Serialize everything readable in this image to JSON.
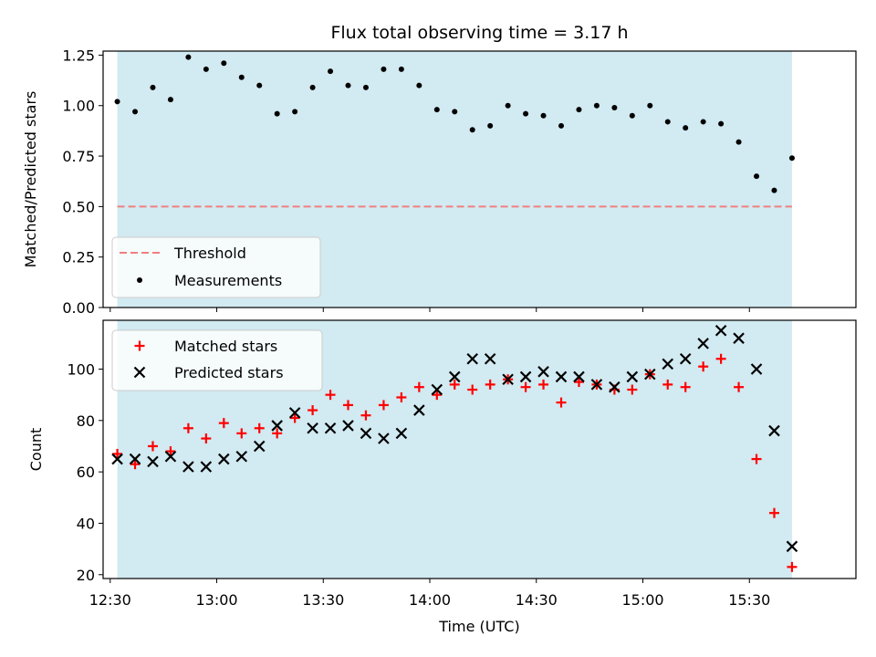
{
  "chart_data": [
    {
      "type": "scatter",
      "title": "Flux total observing time = 3.17 h",
      "xlabel": "",
      "ylabel": "Matched/Predicted stars",
      "ylim": [
        0,
        1.27
      ],
      "yticks": [
        "0.00",
        "0.25",
        "0.50",
        "0.75",
        "1.00",
        "1.25"
      ],
      "ytick_values": [
        0,
        0.25,
        0.5,
        0.75,
        1.0,
        1.25
      ],
      "xlim": [
        "12:28",
        "16:00"
      ],
      "shaded_span": [
        "12:32",
        "15:42"
      ],
      "threshold": 0.5,
      "legend_position": "lower-left",
      "legend": [
        "Threshold",
        "Measurements"
      ],
      "x": [
        "12:32",
        "12:37",
        "12:42",
        "12:47",
        "12:52",
        "12:57",
        "13:02",
        "13:07",
        "13:12",
        "13:17",
        "13:22",
        "13:27",
        "13:32",
        "13:37",
        "13:42",
        "13:47",
        "13:52",
        "13:57",
        "14:02",
        "14:07",
        "14:12",
        "14:17",
        "14:22",
        "14:27",
        "14:32",
        "14:37",
        "14:42",
        "14:47",
        "14:52",
        "14:57",
        "15:02",
        "15:07",
        "15:12",
        "15:17",
        "15:22",
        "15:27",
        "15:32",
        "15:37",
        "15:42"
      ],
      "values": [
        1.02,
        0.97,
        1.09,
        1.03,
        1.24,
        1.18,
        1.21,
        1.14,
        1.1,
        0.96,
        0.97,
        1.09,
        1.17,
        1.1,
        1.09,
        1.18,
        1.18,
        1.1,
        0.98,
        0.97,
        0.88,
        0.9,
        1.0,
        0.96,
        0.95,
        0.9,
        0.98,
        1.0,
        0.99,
        0.95,
        1.0,
        0.92,
        0.89,
        0.92,
        0.91,
        0.82,
        0.65,
        0.58,
        0.74
      ]
    },
    {
      "type": "scatter",
      "title": "",
      "xlabel": "Time (UTC)",
      "ylabel": "Count",
      "ylim": [
        18.5,
        119
      ],
      "yticks": [
        "20",
        "40",
        "60",
        "80",
        "100"
      ],
      "ytick_values": [
        20,
        40,
        60,
        80,
        100
      ],
      "xlim": [
        "12:28",
        "16:00"
      ],
      "xticks": [
        "12:30",
        "13:00",
        "13:30",
        "14:00",
        "14:30",
        "15:00",
        "15:30"
      ],
      "shaded_span": [
        "12:32",
        "15:42"
      ],
      "legend_position": "upper-left",
      "x": [
        "12:32",
        "12:37",
        "12:42",
        "12:47",
        "12:52",
        "12:57",
        "13:02",
        "13:07",
        "13:12",
        "13:17",
        "13:22",
        "13:27",
        "13:32",
        "13:37",
        "13:42",
        "13:47",
        "13:52",
        "13:57",
        "14:02",
        "14:07",
        "14:12",
        "14:17",
        "14:22",
        "14:27",
        "14:32",
        "14:37",
        "14:42",
        "14:47",
        "14:52",
        "14:57",
        "15:02",
        "15:07",
        "15:12",
        "15:17",
        "15:22",
        "15:27",
        "15:32",
        "15:37",
        "15:42"
      ],
      "series": [
        {
          "name": "Matched stars",
          "marker": "plus",
          "color": "#ff0000",
          "values": [
            67,
            63,
            70,
            68,
            77,
            73,
            79,
            75,
            77,
            75,
            81,
            84,
            90,
            86,
            82,
            86,
            89,
            93,
            90,
            94,
            92,
            94,
            96,
            93,
            94,
            87,
            95,
            94,
            92,
            92,
            98,
            94,
            93,
            101,
            104,
            93,
            65,
            44,
            23
          ]
        },
        {
          "name": "Predicted stars",
          "marker": "x",
          "color": "#000000",
          "values": [
            65,
            65,
            64,
            66,
            62,
            62,
            65,
            66,
            70,
            78,
            83,
            77,
            77,
            78,
            75,
            73,
            75,
            84,
            92,
            97,
            104,
            104,
            96,
            97,
            99,
            97,
            97,
            94,
            93,
            97,
            98,
            102,
            104,
            110,
            115,
            112,
            100,
            76,
            31
          ]
        }
      ]
    }
  ],
  "colors": {
    "shade": "#add8e6",
    "threshold": "#f08080",
    "matched": "#ff0000",
    "predicted": "#000000"
  }
}
